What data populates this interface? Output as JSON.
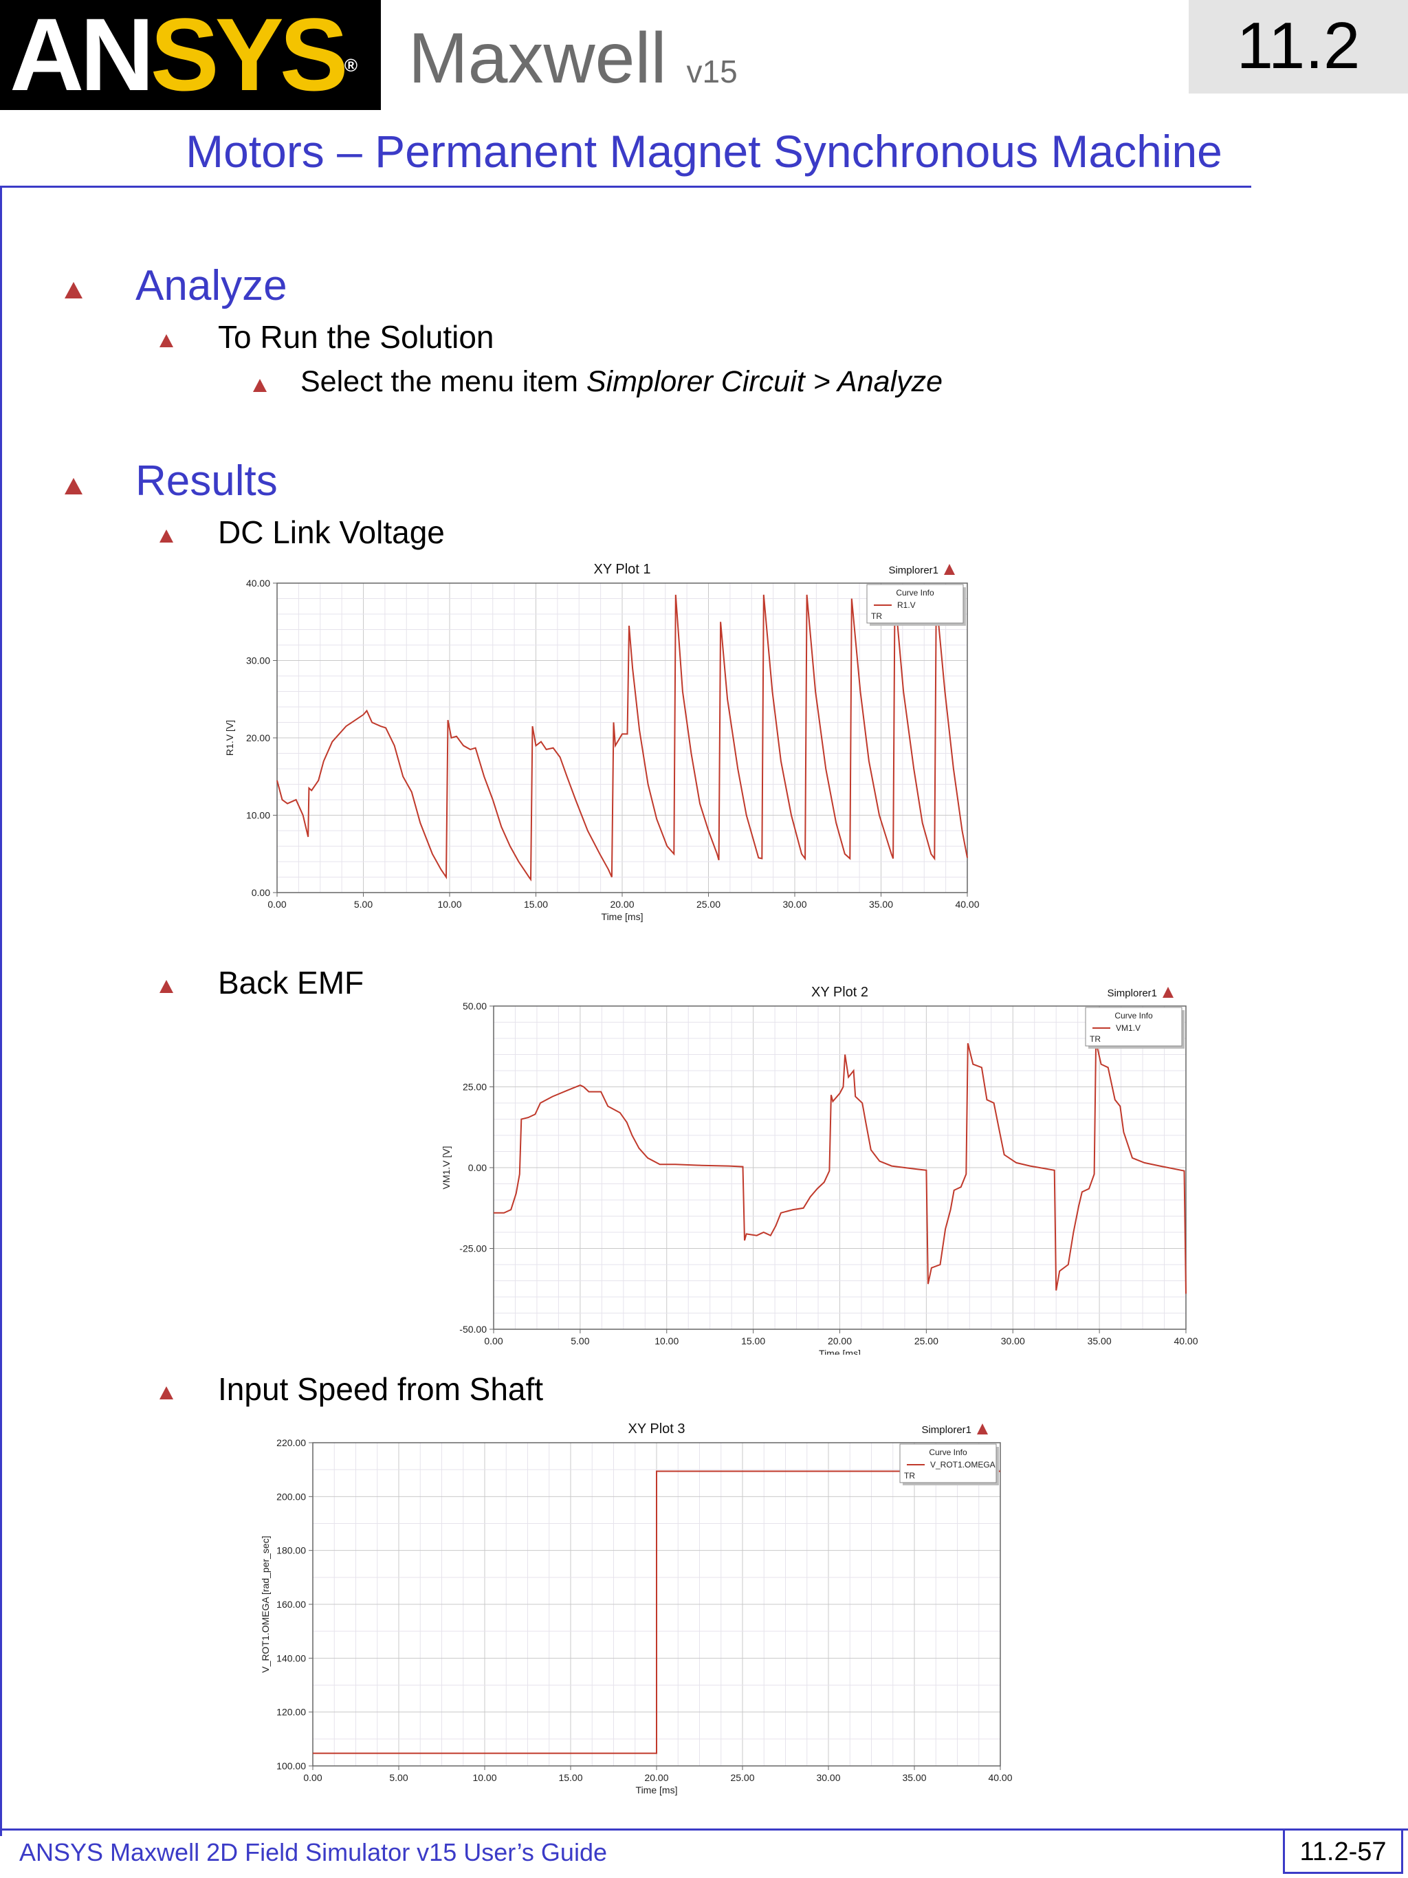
{
  "header": {
    "logo": {
      "part1": "AN",
      "part2": "SYS",
      "registered": "®"
    },
    "product": "Maxwell",
    "version": "v15",
    "section": "11.2",
    "title": "Motors – Permanent Magnet Synchronous Machine"
  },
  "content": {
    "analyze": {
      "heading": "Analyze",
      "sub": "To Run the Solution",
      "item_prefix": "Select the menu item ",
      "item_path": "Simplorer Circuit > Analyze"
    },
    "results": {
      "heading": "Results",
      "plot1_label": "DC Link Voltage",
      "plot2_label": "Back EMF",
      "plot3_label": "Input Speed from Shaft"
    }
  },
  "footer": {
    "guide": "ANSYS Maxwell 2D Field Simulator v15 User’s Guide",
    "page": "11.2-57"
  },
  "colors": {
    "accent": "#3b3bc7",
    "curve": "#c0392b",
    "logo_yellow": "#f4c300"
  },
  "chart_data": [
    {
      "type": "line",
      "title": "XY Plot 1",
      "source": "Simplorer1",
      "legend_title": "Curve Info",
      "legend_tag": "TR",
      "xlabel": "Time [ms]",
      "ylabel": "R1.V [V]",
      "xlim": [
        0,
        40
      ],
      "ylim": [
        0,
        40
      ],
      "xticks": [
        "0.00",
        "5.00",
        "10.00",
        "15.00",
        "20.00",
        "25.00",
        "30.00",
        "35.00",
        "40.00"
      ],
      "yticks": [
        "0.00",
        "10.00",
        "20.00",
        "30.00",
        "40.00"
      ],
      "grid": true,
      "legend": "top-right",
      "series": [
        {
          "name": "R1.V",
          "points": [
            [
              0,
              14.5
            ],
            [
              0.3,
              12
            ],
            [
              0.6,
              11.5
            ],
            [
              1.1,
              12
            ],
            [
              1.5,
              10
            ],
            [
              1.8,
              7.2
            ],
            [
              1.85,
              13.5
            ],
            [
              2.0,
              13.2
            ],
            [
              2.4,
              14.5
            ],
            [
              2.7,
              17
            ],
            [
              3.2,
              19.5
            ],
            [
              4,
              21.5
            ],
            [
              5,
              23
            ],
            [
              5.2,
              23.5
            ],
            [
              5.5,
              22
            ],
            [
              6,
              21.5
            ],
            [
              6.3,
              21.3
            ],
            [
              6.8,
              19
            ],
            [
              7.3,
              15
            ],
            [
              7.8,
              13
            ],
            [
              8.3,
              9
            ],
            [
              9,
              5
            ],
            [
              9.5,
              3
            ],
            [
              9.8,
              2
            ],
            [
              9.9,
              22.3
            ],
            [
              10.1,
              20
            ],
            [
              10.4,
              20.2
            ],
            [
              10.8,
              19
            ],
            [
              11.2,
              18.5
            ],
            [
              11.5,
              18.7
            ],
            [
              12,
              15
            ],
            [
              12.5,
              12
            ],
            [
              13,
              8.5
            ],
            [
              13.5,
              6
            ],
            [
              14,
              4
            ],
            [
              14.6,
              2
            ],
            [
              14.7,
              1.7
            ],
            [
              14.8,
              21.5
            ],
            [
              15.0,
              19
            ],
            [
              15.3,
              19.5
            ],
            [
              15.6,
              18.5
            ],
            [
              16,
              18.7
            ],
            [
              16.4,
              17.5
            ],
            [
              16.8,
              15
            ],
            [
              17.3,
              12
            ],
            [
              18,
              8
            ],
            [
              18.7,
              5
            ],
            [
              19.2,
              3
            ],
            [
              19.4,
              2
            ],
            [
              19.5,
              22
            ],
            [
              19.6,
              19
            ],
            [
              20,
              20.5
            ],
            [
              20.3,
              20.5
            ],
            [
              20.4,
              34.5
            ],
            [
              20.6,
              29
            ],
            [
              21,
              21
            ],
            [
              21.5,
              14
            ],
            [
              22,
              9.5
            ],
            [
              22.6,
              6
            ],
            [
              23,
              5
            ],
            [
              23.1,
              38.5
            ],
            [
              23.5,
              26
            ],
            [
              24,
              18
            ],
            [
              24.5,
              11.5
            ],
            [
              25,
              8
            ],
            [
              25.5,
              5
            ],
            [
              25.6,
              4.2
            ],
            [
              25.7,
              35
            ],
            [
              26.1,
              25
            ],
            [
              26.7,
              16
            ],
            [
              27.2,
              10
            ],
            [
              27.9,
              4.5
            ],
            [
              28.1,
              4.4
            ],
            [
              28.2,
              38.5
            ],
            [
              28.7,
              26
            ],
            [
              29.2,
              17
            ],
            [
              29.8,
              10
            ],
            [
              30.4,
              5
            ],
            [
              30.6,
              4.4
            ],
            [
              30.7,
              38.5
            ],
            [
              31.2,
              26
            ],
            [
              31.8,
              16
            ],
            [
              32.4,
              9
            ],
            [
              32.9,
              5
            ],
            [
              33.2,
              4.4
            ],
            [
              33.3,
              38
            ],
            [
              33.8,
              26
            ],
            [
              34.3,
              17
            ],
            [
              34.9,
              10
            ],
            [
              35.6,
              5
            ],
            [
              35.7,
              4.4
            ],
            [
              35.8,
              38.5
            ],
            [
              36.3,
              26
            ],
            [
              36.9,
              16
            ],
            [
              37.4,
              9
            ],
            [
              37.9,
              5
            ],
            [
              38.1,
              4.4
            ],
            [
              38.2,
              38
            ],
            [
              38.7,
              26
            ],
            [
              39.2,
              16
            ],
            [
              39.7,
              8
            ],
            [
              40,
              4.5
            ]
          ]
        }
      ]
    },
    {
      "type": "line",
      "title": "XY Plot 2",
      "source": "Simplorer1",
      "legend_title": "Curve Info",
      "legend_tag": "TR",
      "xlabel": "Time [ms]",
      "ylabel": "VM1.V [V]",
      "xlim": [
        0,
        40
      ],
      "ylim": [
        -50,
        50
      ],
      "xticks": [
        "0.00",
        "5.00",
        "10.00",
        "15.00",
        "20.00",
        "25.00",
        "30.00",
        "35.00",
        "40.00"
      ],
      "yticks": [
        "-50.00",
        "-25.00",
        "0.00",
        "25.00",
        "50.00"
      ],
      "grid": true,
      "legend": "top-right",
      "series": [
        {
          "name": "VM1.V",
          "points": [
            [
              0,
              -14
            ],
            [
              0.6,
              -14
            ],
            [
              1.0,
              -13
            ],
            [
              1.3,
              -8
            ],
            [
              1.5,
              -2
            ],
            [
              1.6,
              15
            ],
            [
              2.0,
              15.5
            ],
            [
              2.4,
              16.5
            ],
            [
              2.7,
              20
            ],
            [
              3.4,
              22
            ],
            [
              4.3,
              24
            ],
            [
              5.0,
              25.5
            ],
            [
              5.2,
              25
            ],
            [
              5.5,
              23.5
            ],
            [
              6.2,
              23.5
            ],
            [
              6.6,
              19
            ],
            [
              7.3,
              17
            ],
            [
              7.7,
              14
            ],
            [
              8.0,
              10
            ],
            [
              8.4,
              6
            ],
            [
              8.9,
              3
            ],
            [
              9.6,
              1
            ],
            [
              10.5,
              1
            ],
            [
              12,
              0.7
            ],
            [
              13.6,
              0.5
            ],
            [
              14.4,
              0.3
            ],
            [
              14.5,
              -22.5
            ],
            [
              14.6,
              -20.5
            ],
            [
              15.2,
              -21
            ],
            [
              15.6,
              -20
            ],
            [
              16.0,
              -21
            ],
            [
              16.3,
              -18
            ],
            [
              16.6,
              -14
            ],
            [
              17.3,
              -13
            ],
            [
              17.9,
              -12.5
            ],
            [
              18.3,
              -9
            ],
            [
              18.7,
              -6.5
            ],
            [
              19.1,
              -4.5
            ],
            [
              19.4,
              -1
            ],
            [
              19.5,
              22.5
            ],
            [
              19.6,
              20.5
            ],
            [
              20.0,
              23
            ],
            [
              20.2,
              25
            ],
            [
              20.3,
              35
            ],
            [
              20.5,
              28
            ],
            [
              20.8,
              30
            ],
            [
              20.9,
              22
            ],
            [
              21.3,
              20
            ],
            [
              21.5,
              14
            ],
            [
              21.8,
              5.5
            ],
            [
              22.3,
              2
            ],
            [
              23,
              0.5
            ],
            [
              24.5,
              -0.5
            ],
            [
              25.0,
              -0.8
            ],
            [
              25.1,
              -36
            ],
            [
              25.3,
              -31
            ],
            [
              25.8,
              -30
            ],
            [
              26.1,
              -19
            ],
            [
              26.4,
              -13
            ],
            [
              26.6,
              -7
            ],
            [
              27.0,
              -6
            ],
            [
              27.3,
              -2
            ],
            [
              27.4,
              38.5
            ],
            [
              27.7,
              32
            ],
            [
              28.2,
              31
            ],
            [
              28.5,
              21
            ],
            [
              28.9,
              20
            ],
            [
              29.2,
              12
            ],
            [
              29.5,
              4
            ],
            [
              30.2,
              1.5
            ],
            [
              31,
              0.5
            ],
            [
              32.4,
              -0.8
            ],
            [
              32.5,
              -38
            ],
            [
              32.7,
              -32
            ],
            [
              33.2,
              -30
            ],
            [
              33.5,
              -20
            ],
            [
              33.8,
              -12
            ],
            [
              34.0,
              -7.5
            ],
            [
              34.4,
              -6.5
            ],
            [
              34.7,
              -2
            ],
            [
              34.8,
              39
            ],
            [
              35.1,
              32
            ],
            [
              35.5,
              31
            ],
            [
              35.9,
              21
            ],
            [
              36.2,
              19
            ],
            [
              36.4,
              11
            ],
            [
              36.9,
              3
            ],
            [
              37.6,
              1.5
            ],
            [
              38.5,
              0.5
            ],
            [
              39.9,
              -1
            ],
            [
              40,
              -39
            ]
          ]
        }
      ]
    },
    {
      "type": "line",
      "title": "XY Plot 3",
      "source": "Simplorer1",
      "legend_title": "Curve Info",
      "legend_tag": "TR",
      "xlabel": "Time [ms]",
      "ylabel": "V_ROT1.OMEGA [rad_per_sec]",
      "xlim": [
        0,
        40
      ],
      "ylim": [
        100,
        220
      ],
      "xticks": [
        "0.00",
        "5.00",
        "10.00",
        "15.00",
        "20.00",
        "25.00",
        "30.00",
        "35.00",
        "40.00"
      ],
      "yticks": [
        "100.00",
        "120.00",
        "140.00",
        "160.00",
        "180.00",
        "200.00",
        "220.00"
      ],
      "grid": true,
      "legend": "top-right",
      "series": [
        {
          "name": "V_ROT1.OMEGA",
          "points": [
            [
              0,
              104.7
            ],
            [
              20,
              104.7
            ],
            [
              20,
              209.4
            ],
            [
              40,
              209.4
            ]
          ]
        }
      ]
    }
  ]
}
